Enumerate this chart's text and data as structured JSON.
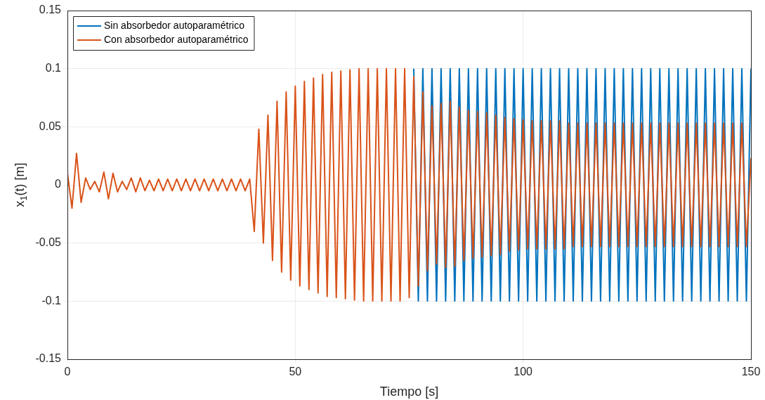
{
  "chart_data": {
    "type": "line",
    "xlabel": "Tiempo [s]",
    "ylabel": "x$_{1}$(t) [m]",
    "xlim": [
      0,
      150
    ],
    "xticks": [
      0,
      50,
      100,
      150
    ],
    "ylim": [
      -0.15,
      0.15
    ],
    "yticks": [
      -0.15,
      -0.1,
      -0.05,
      0,
      0.05,
      0.1,
      0.15
    ],
    "grid": true,
    "legend": "top left",
    "marker": "none",
    "line_style": "solid",
    "series": [
      {
        "name": "Sin absorbedor autoparamétrico",
        "color": "#0072bd",
        "x": [
          76,
          77,
          78,
          79,
          80,
          81,
          82,
          83,
          84,
          85,
          86,
          87,
          88,
          89,
          90,
          91,
          92,
          93,
          94,
          95,
          96,
          97,
          98,
          99,
          100,
          101,
          102,
          103,
          104,
          105,
          106,
          107,
          108,
          109,
          110,
          111,
          112,
          113,
          114,
          115,
          116,
          117,
          118,
          119,
          120,
          121,
          122,
          123,
          124,
          125,
          126,
          127,
          128,
          129,
          130,
          131,
          132,
          133,
          134,
          135,
          136,
          137,
          138,
          139,
          140,
          141,
          142,
          143,
          144,
          145,
          146,
          147,
          148,
          149,
          150
        ],
        "values": [
          0.1,
          -0.1,
          0.1,
          -0.1,
          0.1,
          -0.1,
          0.1,
          -0.1,
          0.1,
          -0.1,
          0.1,
          -0.1,
          0.1,
          -0.1,
          0.1,
          -0.1,
          0.1,
          -0.1,
          0.1,
          -0.1,
          0.1,
          -0.1,
          0.1,
          -0.1,
          0.1,
          -0.1,
          0.1,
          -0.1,
          0.1,
          -0.1,
          0.1,
          -0.1,
          0.1,
          -0.1,
          0.1,
          -0.1,
          0.1,
          -0.1,
          0.1,
          -0.1,
          0.1,
          -0.1,
          0.1,
          -0.1,
          0.1,
          -0.1,
          0.1,
          -0.1,
          0.1,
          -0.1,
          0.1,
          -0.1,
          0.1,
          -0.1,
          0.1,
          -0.1,
          0.1,
          -0.1,
          0.1,
          -0.1,
          0.1,
          -0.1,
          0.1,
          -0.1,
          0.1,
          -0.1,
          0.1,
          -0.1,
          0.1,
          -0.1,
          0.1,
          -0.1,
          0.1,
          -0.1,
          0.1
        ]
      },
      {
        "name": "Con absorbedor autoparamétrico",
        "color": "#d95319",
        "x": [
          0,
          1,
          2,
          3,
          4,
          5,
          6,
          7,
          8,
          9,
          10,
          11,
          12,
          13,
          14,
          15,
          16,
          17,
          18,
          19,
          20,
          21,
          22,
          23,
          24,
          25,
          26,
          27,
          28,
          29,
          30,
          31,
          32,
          33,
          34,
          35,
          36,
          37,
          38,
          39,
          40,
          41,
          42,
          43,
          44,
          45,
          46,
          47,
          48,
          49,
          50,
          51,
          52,
          53,
          54,
          55,
          56,
          57,
          58,
          59,
          60,
          61,
          62,
          63,
          64,
          65,
          66,
          67,
          68,
          69,
          70,
          71,
          72,
          73,
          74,
          75,
          76,
          77,
          78,
          79,
          80,
          81,
          82,
          83,
          84,
          85,
          86,
          87,
          88,
          89,
          90,
          91,
          92,
          93,
          94,
          95,
          96,
          97,
          98,
          99,
          100,
          101,
          102,
          103,
          104,
          105,
          106,
          107,
          108,
          109,
          110,
          111,
          112,
          113,
          114,
          115,
          116,
          117,
          118,
          119,
          120,
          121,
          122,
          123,
          124,
          125,
          126,
          127,
          128,
          129,
          130,
          131,
          132,
          133,
          134,
          135,
          136,
          137,
          138,
          139,
          140,
          141,
          142,
          143,
          144,
          145,
          146,
          147,
          148,
          149,
          150
        ],
        "values": [
          0.01,
          -0.02,
          0.027,
          -0.015,
          0.006,
          -0.004,
          0.003,
          -0.006,
          0.011,
          -0.012,
          0.01,
          -0.006,
          0.003,
          -0.004,
          0.006,
          -0.006,
          0.006,
          -0.005,
          0.004,
          -0.005,
          0.005,
          -0.005,
          0.005,
          -0.005,
          0.005,
          -0.005,
          0.005,
          -0.005,
          0.005,
          -0.005,
          0.005,
          -0.005,
          0.005,
          -0.005,
          0.005,
          -0.005,
          0.005,
          -0.005,
          0.005,
          -0.005,
          0.005,
          -0.04,
          0.048,
          -0.05,
          0.06,
          -0.065,
          0.072,
          -0.075,
          0.08,
          -0.082,
          0.085,
          -0.087,
          0.089,
          -0.09,
          0.092,
          -0.093,
          0.095,
          -0.096,
          0.097,
          -0.097,
          0.098,
          -0.098,
          0.099,
          -0.099,
          0.1,
          -0.1,
          0.1,
          -0.1,
          0.1,
          -0.1,
          0.1,
          -0.1,
          0.1,
          -0.1,
          0.1,
          -0.097,
          0.093,
          -0.087,
          0.08,
          -0.074,
          0.068,
          -0.068,
          0.07,
          -0.071,
          0.072,
          -0.07,
          0.067,
          -0.065,
          0.064,
          -0.063,
          0.063,
          -0.062,
          0.062,
          -0.061,
          0.06,
          -0.06,
          0.058,
          -0.057,
          0.057,
          -0.056,
          0.056,
          -0.055,
          0.055,
          -0.055,
          0.055,
          -0.055,
          0.055,
          -0.055,
          0.055,
          -0.055,
          0.053,
          -0.053,
          0.053,
          -0.053,
          0.053,
          -0.053,
          0.053,
          -0.053,
          0.053,
          -0.053,
          0.053,
          -0.053,
          0.053,
          -0.053,
          0.053,
          -0.053,
          0.053,
          -0.053,
          0.053,
          -0.053,
          0.053,
          -0.053,
          0.053,
          -0.053,
          0.053,
          -0.053,
          0.053,
          -0.053,
          0.053,
          -0.053,
          0.053,
          -0.053,
          0.053,
          -0.053,
          0.053,
          -0.053,
          0.053,
          -0.053,
          0.053,
          -0.053,
          0.023
        ]
      }
    ]
  }
}
